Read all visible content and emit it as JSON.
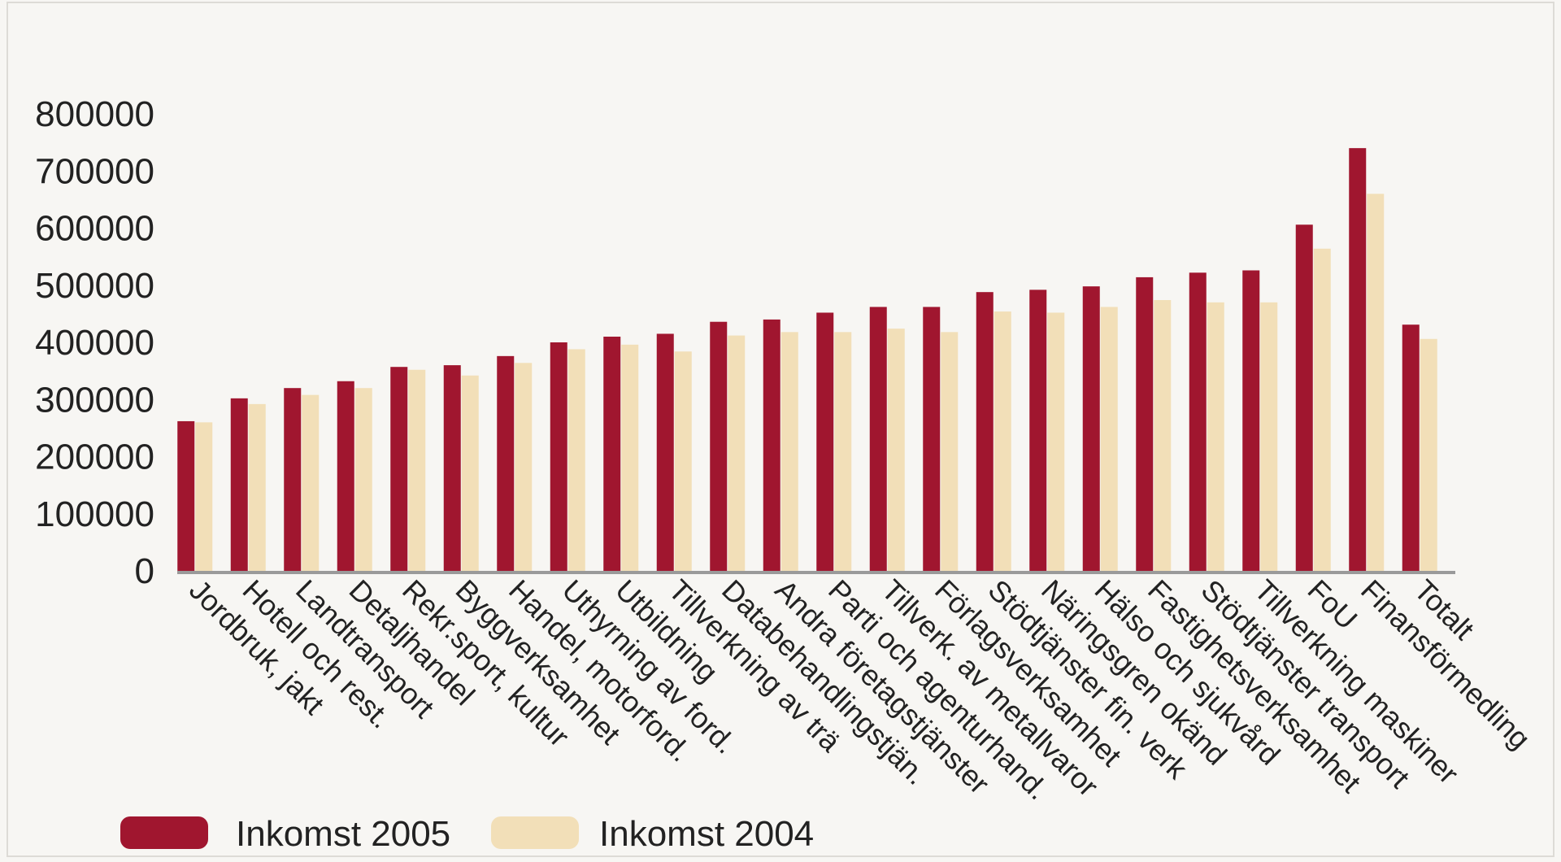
{
  "chart_data": {
    "type": "bar",
    "categories": [
      "Jordbruk, jakt",
      "Hotell och rest.",
      "Landtransport",
      "Detaljhandel",
      "Rekr.sport, kultur",
      "Byggverksamhet",
      "Handel, motorford.",
      "Uthyrning av ford.",
      "Utbildning",
      "Tillverkning av trä",
      "Databehandlingstjän.",
      "Andra företagstjänster",
      "Parti och agenturhand.",
      "Tillverk. av metallvaror",
      "Förlagsverksamhet",
      "Stödtjänster fin. verk",
      "Näringsgren okänd",
      "Hälso och sjukvård",
      "Fastighetsverksamhet",
      "Stödtjänster transport",
      "Tillverkning maskiner",
      "FoU",
      "Finansförmedling",
      "Totalt"
    ],
    "series": [
      {
        "name": "Inkomst 2005",
        "color": "#a0162f",
        "values": [
          262000,
          302000,
          320000,
          332000,
          357000,
          360000,
          376000,
          400000,
          410000,
          415000,
          436000,
          440000,
          452000,
          462000,
          462000,
          488000,
          492000,
          498000,
          514000,
          522000,
          526000,
          606000,
          740000,
          431000
        ]
      },
      {
        "name": "Inkomst 2004",
        "color": "#f2dfb8",
        "values": [
          260000,
          292000,
          308000,
          320000,
          352000,
          342000,
          364000,
          388000,
          396000,
          384000,
          412000,
          418000,
          418000,
          424000,
          418000,
          454000,
          452000,
          462000,
          474000,
          470000,
          470000,
          564000,
          660000,
          406000
        ]
      }
    ],
    "yticks": [
      "800000",
      "700000",
      "600000",
      "500000",
      "400000",
      "300000",
      "200000",
      "100000",
      "0"
    ],
    "ylim": [
      0,
      800000
    ],
    "title": "",
    "xlabel": "",
    "ylabel": "",
    "grid": false,
    "legend_position": "bottom-left"
  },
  "legend": {
    "items": [
      {
        "label": "Inkomst 2005",
        "color": "#a0162f"
      },
      {
        "label": "Inkomst 2004",
        "color": "#f2dfb8"
      }
    ]
  }
}
